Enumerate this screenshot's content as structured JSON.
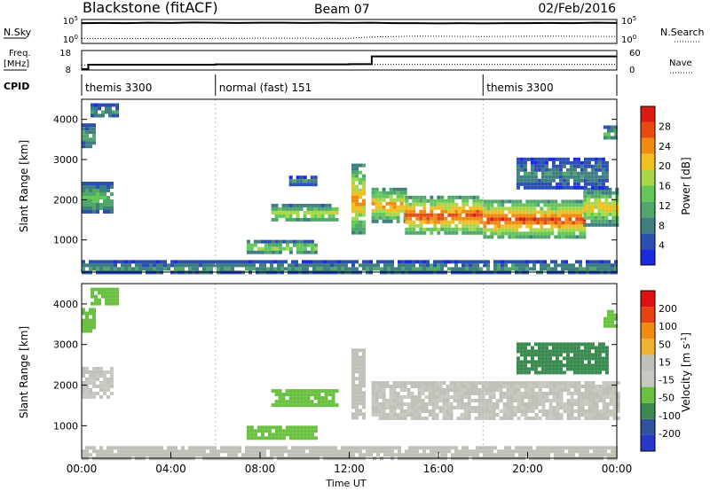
{
  "header": {
    "station": "Blackstone (fitACF)",
    "beam": "Beam 07",
    "date": "02/Feb/2016"
  },
  "colors": {
    "power": [
      "#1a2adc",
      "#2a4fb0",
      "#3f7f80",
      "#4fa86a",
      "#63c85a",
      "#a8d84a",
      "#f0c020",
      "#f08a10",
      "#e84a10",
      "#dc1a10"
    ],
    "velocity": [
      "#2838c8",
      "#3050a0",
      "#3a8a50",
      "#6ac040",
      "#c8c8c0",
      "#c0c0b8",
      "#f0b030",
      "#f08a10",
      "#e84010",
      "#e01010"
    ]
  },
  "chart_data": [
    {
      "type": "line",
      "panel": "noise",
      "labels": {
        "left_top": "N.Sky",
        "left_ticks": [
          "10^5",
          "10^0"
        ],
        "right_top": "N.Search",
        "right_ticks": [
          "10^5",
          "10^0"
        ]
      },
      "series": [
        {
          "name": "N.Sky",
          "style": "solid",
          "x": [
            0,
            1,
            2,
            3,
            4,
            5,
            6,
            7,
            8,
            9,
            10,
            11,
            12,
            13,
            14,
            15,
            16,
            17,
            18,
            19,
            20,
            21,
            22,
            23,
            24
          ],
          "y": [
            4.2,
            4.25,
            4.2,
            4.3,
            4.25,
            4.35,
            4.3,
            4.25,
            4.3,
            4.3,
            4.25,
            4.3,
            4.25,
            4.3,
            4.2,
            4.2,
            4.15,
            4.2,
            4.15,
            4.2,
            4.2,
            4.25,
            4.2,
            4.3,
            4.25
          ]
        },
        {
          "name": "N.Search",
          "style": "dotted",
          "x": [
            0,
            3,
            6,
            9,
            12,
            13,
            15,
            18,
            21,
            24
          ],
          "y": [
            0.9,
            0.9,
            0.9,
            0.95,
            0.9,
            1.2,
            1.4,
            1.3,
            1.4,
            1.3
          ]
        }
      ]
    },
    {
      "type": "line",
      "panel": "frequency",
      "labels": {
        "left_top": "Freq.",
        "left_unit": "[MHz]",
        "left_ticks": [
          "18",
          "8"
        ],
        "right_top": "Nave",
        "right_ticks": [
          "60",
          "0"
        ]
      },
      "series": [
        {
          "name": "Freq.",
          "style": "solid",
          "x": [
            0,
            0.3,
            6,
            12,
            13,
            13.01,
            24
          ],
          "y": [
            8,
            10.5,
            10.7,
            10.8,
            10.8,
            15.2,
            15.2
          ]
        },
        {
          "name": "Nave",
          "style": "dotted",
          "x": [
            0,
            6,
            12,
            13,
            18,
            24
          ],
          "y": [
            14,
            15,
            15,
            16,
            16,
            16
          ]
        }
      ]
    },
    {
      "type": "table",
      "panel": "cpid",
      "label": "CPID",
      "segments": [
        {
          "start": 0,
          "end": 6,
          "text": "themis 3300"
        },
        {
          "start": 6,
          "end": 18,
          "text": "normal (fast) 151"
        },
        {
          "start": 18,
          "end": 24,
          "text": "themis 3300"
        }
      ]
    },
    {
      "type": "heatmap",
      "panel": "power",
      "ylabel": "Slant Range [km]",
      "xlim": [
        0,
        24
      ],
      "ylim": [
        200,
        4500
      ],
      "yticks": [
        1000,
        2000,
        3000,
        4000
      ],
      "colorbar": {
        "label": "Power [dB]",
        "ticks": [
          "28",
          "24",
          "20",
          "16",
          "12",
          "8",
          "4"
        ],
        "range": [
          0,
          30
        ]
      },
      "regions": [
        {
          "t0": 0.0,
          "t1": 1.4,
          "r0": 1700,
          "r1": 2450,
          "value": 8
        },
        {
          "t0": 0.0,
          "t1": 0.6,
          "r0": 3300,
          "r1": 3900,
          "value": 6
        },
        {
          "t0": 0.4,
          "t1": 1.6,
          "r0": 4050,
          "r1": 4400,
          "value": 6
        },
        {
          "t0": 7.4,
          "t1": 10.5,
          "r0": 700,
          "r1": 1000,
          "value": 10
        },
        {
          "t0": 8.5,
          "t1": 11.4,
          "r0": 1500,
          "r1": 1900,
          "value": 11
        },
        {
          "t0": 9.3,
          "t1": 10.5,
          "r0": 2400,
          "r1": 2600,
          "value": 5
        },
        {
          "t0": 12.1,
          "t1": 12.7,
          "r0": 1200,
          "r1": 2900,
          "value": 14
        },
        {
          "t0": 13.0,
          "t1": 14.5,
          "r0": 1500,
          "r1": 2300,
          "value": 14
        },
        {
          "t0": 14.5,
          "t1": 18.0,
          "r0": 1200,
          "r1": 2100,
          "value": 16
        },
        {
          "t0": 18.0,
          "t1": 22.5,
          "r0": 1100,
          "r1": 2000,
          "value": 16
        },
        {
          "t0": 22.5,
          "t1": 24.0,
          "r0": 1400,
          "r1": 2300,
          "value": 12
        },
        {
          "t0": 19.5,
          "t1": 23.5,
          "r0": 2300,
          "r1": 3050,
          "value": 5
        },
        {
          "t0": 23.4,
          "t1": 24.0,
          "r0": 3500,
          "r1": 3850,
          "value": 8
        },
        {
          "t0": 0.0,
          "t1": 24.0,
          "r0": 200,
          "r1": 500,
          "value": 6
        }
      ]
    },
    {
      "type": "heatmap",
      "panel": "velocity",
      "ylabel": "Slant Range [km]",
      "xlabel": "Time UT",
      "xlim": [
        0,
        24
      ],
      "ylim": [
        200,
        4500
      ],
      "yticks": [
        1000,
        2000,
        3000,
        4000
      ],
      "xticks": [
        "00:00",
        "04:00",
        "08:00",
        "12:00",
        "16:00",
        "20:00",
        "00:00"
      ],
      "colorbar": {
        "label": "Velocity [m s^-1]",
        "ticks": [
          "200",
          "100",
          "50",
          "15",
          "-15",
          "-50",
          "-100",
          "-200"
        ],
        "range": [
          -250,
          250
        ]
      },
      "regions": [
        {
          "t0": 0.0,
          "t1": 1.4,
          "r0": 1700,
          "r1": 2450,
          "value": 0
        },
        {
          "t0": 0.0,
          "t1": 0.6,
          "r0": 3300,
          "r1": 3900,
          "value": -80
        },
        {
          "t0": 0.4,
          "t1": 1.6,
          "r0": 4050,
          "r1": 4400,
          "value": -60
        },
        {
          "t0": 7.4,
          "t1": 10.5,
          "r0": 700,
          "r1": 1000,
          "value": -60
        },
        {
          "t0": 8.5,
          "t1": 11.4,
          "r0": 1500,
          "r1": 1900,
          "value": -60
        },
        {
          "t0": 12.1,
          "t1": 12.7,
          "r0": 1200,
          "r1": 2900,
          "value": 30
        },
        {
          "t0": 13.0,
          "t1": 24.0,
          "r0": 1200,
          "r1": 2100,
          "value": 0
        },
        {
          "t0": 19.5,
          "t1": 23.5,
          "r0": 2300,
          "r1": 3050,
          "value": -110
        },
        {
          "t0": 23.4,
          "t1": 24.0,
          "r0": 3500,
          "r1": 3850,
          "value": -60
        },
        {
          "t0": 0.0,
          "t1": 24.0,
          "r0": 200,
          "r1": 500,
          "value": 30
        }
      ]
    }
  ]
}
